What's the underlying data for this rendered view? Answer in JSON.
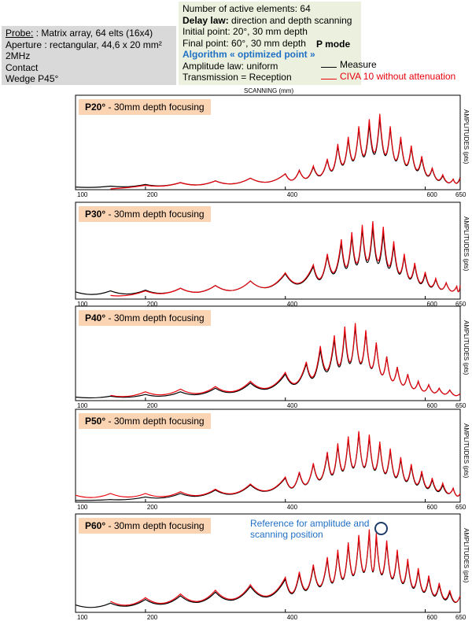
{
  "probe": {
    "line1_label": "Probe:",
    "line1_value": " : Matrix array, 64 elts (16x4)",
    "line2": "Aperture : rectangular, 44,6 x 20 mm²",
    "line3": "2MHz",
    "line4": "Contact",
    "line5": "Wedge P45°"
  },
  "delay": {
    "line1": "Number of active elements: 64",
    "line2_label": "Delay law:",
    "line2_value": " direction and depth scanning",
    "line3": "Initial point: 20°, 30 mm depth",
    "line4": "Final point: 60°, 30 mm depth",
    "line5": "Algorithm « optimized point »",
    "line6": "Amplitude law: uniform",
    "line7": "Transmission = Reception"
  },
  "mode_label": "P mode",
  "legend": [
    {
      "label": "Measure",
      "color": "#000000"
    },
    {
      "label": "CIVA 10 without attenuation",
      "color": "#e8000b"
    }
  ],
  "scanning_label": "SCANNING (mm)",
  "reference_note": "Reference for amplitude and scanning position",
  "chart_data": [
    {
      "type": "line",
      "title_bold": "P20°",
      "title_rest": " - 30mm depth focusing",
      "ylabel": "AMPLITUDES (pts)",
      "xlim": [
        100,
        650
      ],
      "ylim": [
        0,
        100
      ],
      "xticks": [
        100,
        200,
        400,
        600,
        650
      ],
      "series": [
        {
          "name": "Measure",
          "x": [
            100,
            150,
            200,
            250,
            300,
            350,
            400,
            420,
            440,
            460,
            475,
            490,
            505,
            520,
            535,
            550,
            565,
            580,
            595,
            610,
            625,
            640,
            650
          ],
          "y": [
            3,
            4,
            6,
            8,
            10,
            13,
            18,
            22,
            26,
            34,
            50,
            58,
            70,
            75,
            82,
            70,
            58,
            48,
            36,
            24,
            16,
            12,
            14
          ]
        },
        {
          "name": "CIVA 10 without attenuation",
          "x": [
            150,
            200,
            250,
            300,
            350,
            400,
            420,
            440,
            460,
            475,
            490,
            505,
            520,
            535,
            550,
            565,
            580,
            595,
            610,
            625,
            640,
            650
          ],
          "y": [
            1,
            5,
            8,
            10,
            13,
            18,
            22,
            27,
            35,
            52,
            60,
            72,
            80,
            86,
            72,
            60,
            50,
            38,
            25,
            17,
            12,
            13
          ]
        }
      ]
    },
    {
      "type": "line",
      "title_bold": "P30°",
      "title_rest": " - 30mm depth focusing",
      "ylabel": "AMPLITUDES (pts)",
      "xlim": [
        100,
        650
      ],
      "ylim": [
        0,
        100
      ],
      "xticks": [
        100,
        200,
        400,
        600,
        650
      ],
      "series": [
        {
          "name": "Measure",
          "x": [
            100,
            150,
            200,
            250,
            300,
            350,
            400,
            440,
            460,
            480,
            495,
            510,
            525,
            540,
            555,
            570,
            585,
            600,
            615,
            630,
            645,
            650
          ],
          "y": [
            8,
            9,
            10,
            12,
            15,
            20,
            28,
            36,
            48,
            62,
            70,
            78,
            80,
            74,
            60,
            48,
            38,
            28,
            22,
            18,
            14,
            15
          ]
        },
        {
          "name": "CIVA 10 without attenuation",
          "x": [
            150,
            200,
            250,
            300,
            350,
            400,
            440,
            460,
            480,
            495,
            510,
            525,
            540,
            555,
            570,
            585,
            600,
            615,
            630,
            645,
            650
          ],
          "y": [
            4,
            9,
            12,
            15,
            20,
            29,
            38,
            50,
            66,
            74,
            82,
            86,
            80,
            64,
            50,
            40,
            30,
            23,
            18,
            14,
            15
          ]
        }
      ]
    },
    {
      "type": "line",
      "title_bold": "P40°",
      "title_rest": " - 30mm depth focusing",
      "ylabel": "AMPLITUDES (pts)",
      "xlim": [
        100,
        650
      ],
      "ylim": [
        0,
        100
      ],
      "xticks": [
        100,
        200,
        400,
        600,
        650
      ],
      "series": [
        {
          "name": "Measure",
          "x": [
            100,
            150,
            200,
            250,
            300,
            350,
            400,
            430,
            450,
            470,
            485,
            500,
            515,
            530,
            545,
            560,
            575,
            590,
            605,
            620,
            635,
            650
          ],
          "y": [
            4,
            5,
            7,
            10,
            14,
            20,
            30,
            42,
            58,
            70,
            80,
            85,
            78,
            65,
            50,
            38,
            30,
            22,
            18,
            14,
            12,
            8
          ]
        },
        {
          "name": "CIVA 10 without attenuation",
          "x": [
            150,
            200,
            250,
            300,
            350,
            400,
            430,
            450,
            470,
            485,
            500,
            515,
            530,
            545,
            560,
            575,
            590,
            605,
            620,
            635,
            650
          ],
          "y": [
            6,
            10,
            13,
            16,
            22,
            32,
            44,
            62,
            74,
            84,
            88,
            80,
            66,
            50,
            38,
            30,
            22,
            18,
            14,
            12,
            8
          ]
        }
      ]
    },
    {
      "type": "line",
      "title_bold": "P50°",
      "title_rest": " - 30mm depth focusing",
      "ylabel": "AMPLITUDES (pts)",
      "xlim": [
        100,
        650
      ],
      "ylim": [
        0,
        100
      ],
      "xticks": [
        100,
        200,
        400,
        600,
        650
      ],
      "series": [
        {
          "name": "Measure",
          "x": [
            100,
            150,
            200,
            250,
            300,
            350,
            400,
            420,
            440,
            460,
            475,
            490,
            505,
            520,
            535,
            550,
            565,
            580,
            595,
            610,
            625,
            640,
            650
          ],
          "y": [
            2,
            3,
            6,
            10,
            14,
            20,
            28,
            34,
            44,
            56,
            66,
            74,
            80,
            76,
            68,
            60,
            50,
            42,
            34,
            26,
            20,
            16,
            10
          ]
        },
        {
          "name": "CIVA 10 without attenuation",
          "x": [
            100,
            150,
            200,
            250,
            300,
            350,
            400,
            420,
            440,
            460,
            475,
            490,
            505,
            520,
            535,
            550,
            565,
            580,
            595,
            610,
            625,
            640,
            650
          ],
          "y": [
            8,
            10,
            10,
            12,
            15,
            21,
            29,
            35,
            45,
            58,
            68,
            76,
            82,
            78,
            70,
            62,
            52,
            44,
            36,
            28,
            22,
            16,
            10
          ]
        }
      ]
    },
    {
      "type": "line",
      "title_bold": "P60°",
      "title_rest": " - 30mm depth focusing",
      "ylabel": "AMPLITUDES (pts)",
      "xlim": [
        100,
        650
      ],
      "ylim": [
        0,
        100
      ],
      "xticks": [
        100,
        200,
        400,
        600,
        650
      ],
      "series": [
        {
          "name": "Measure",
          "x": [
            100,
            150,
            200,
            250,
            300,
            350,
            400,
            420,
            440,
            460,
            475,
            490,
            505,
            520,
            530,
            545,
            560,
            575,
            590,
            605,
            620,
            635,
            650
          ],
          "y": [
            8,
            10,
            14,
            18,
            22,
            28,
            36,
            42,
            50,
            58,
            66,
            74,
            82,
            88,
            84,
            76,
            66,
            56,
            46,
            38,
            30,
            22,
            18
          ]
        },
        {
          "name": "CIVA 10 without attenuation",
          "x": [
            150,
            200,
            250,
            300,
            350,
            400,
            420,
            440,
            460,
            475,
            490,
            505,
            520,
            530,
            545,
            560,
            575,
            590,
            605,
            620,
            635,
            650
          ],
          "y": [
            12,
            16,
            20,
            24,
            30,
            38,
            44,
            52,
            60,
            68,
            76,
            84,
            90,
            86,
            78,
            68,
            58,
            48,
            40,
            32,
            24,
            18
          ]
        }
      ]
    }
  ]
}
